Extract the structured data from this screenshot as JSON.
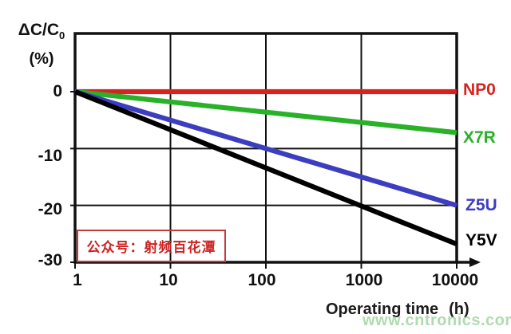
{
  "y_axis": {
    "title_main": "ΔC/C",
    "title_sub": "0",
    "unit": "(%)",
    "tick_labels": [
      "0",
      "-10",
      "-20",
      "-30"
    ]
  },
  "x_axis": {
    "tick_labels": [
      "1",
      "10",
      "100",
      "1000",
      "10000"
    ],
    "title": "Operating time",
    "title_unit": "(h)"
  },
  "chart_data": {
    "type": "line",
    "title": "",
    "xlabel": "Operating time (h)",
    "ylabel": "ΔC/C₀ (%)",
    "x_scale": "log",
    "xlim": [
      1,
      10000
    ],
    "ylim": [
      -30,
      10
    ],
    "grid": true,
    "x": [
      1,
      10,
      100,
      1000,
      10000
    ],
    "x_ticks": [
      1,
      10,
      100,
      1000,
      10000
    ],
    "y_ticks": [
      0,
      -10,
      -20,
      -30
    ],
    "series": [
      {
        "name": "NP0",
        "color": "#d42420",
        "values": [
          0,
          0,
          0,
          0,
          0
        ]
      },
      {
        "name": "X7R",
        "color": "#29b229",
        "values": [
          0,
          -1.8,
          -3.6,
          -5.4,
          -7.2
        ]
      },
      {
        "name": "Z5U",
        "color": "#3d3dc0",
        "values": [
          0,
          -5,
          -10,
          -15,
          -20
        ]
      },
      {
        "name": "Y5V",
        "color": "#000000",
        "values": [
          0,
          -6.7,
          -13.4,
          -20.1,
          -26.8
        ]
      }
    ],
    "legend_position": "right-of-lines",
    "axis_color": "#111111"
  },
  "overlays": {
    "stamp_text": "公众号：射频百花潭",
    "stamp_color": "#cc2222",
    "watermark_text": "www.cntronics.com",
    "watermark_color": "#96d096"
  }
}
